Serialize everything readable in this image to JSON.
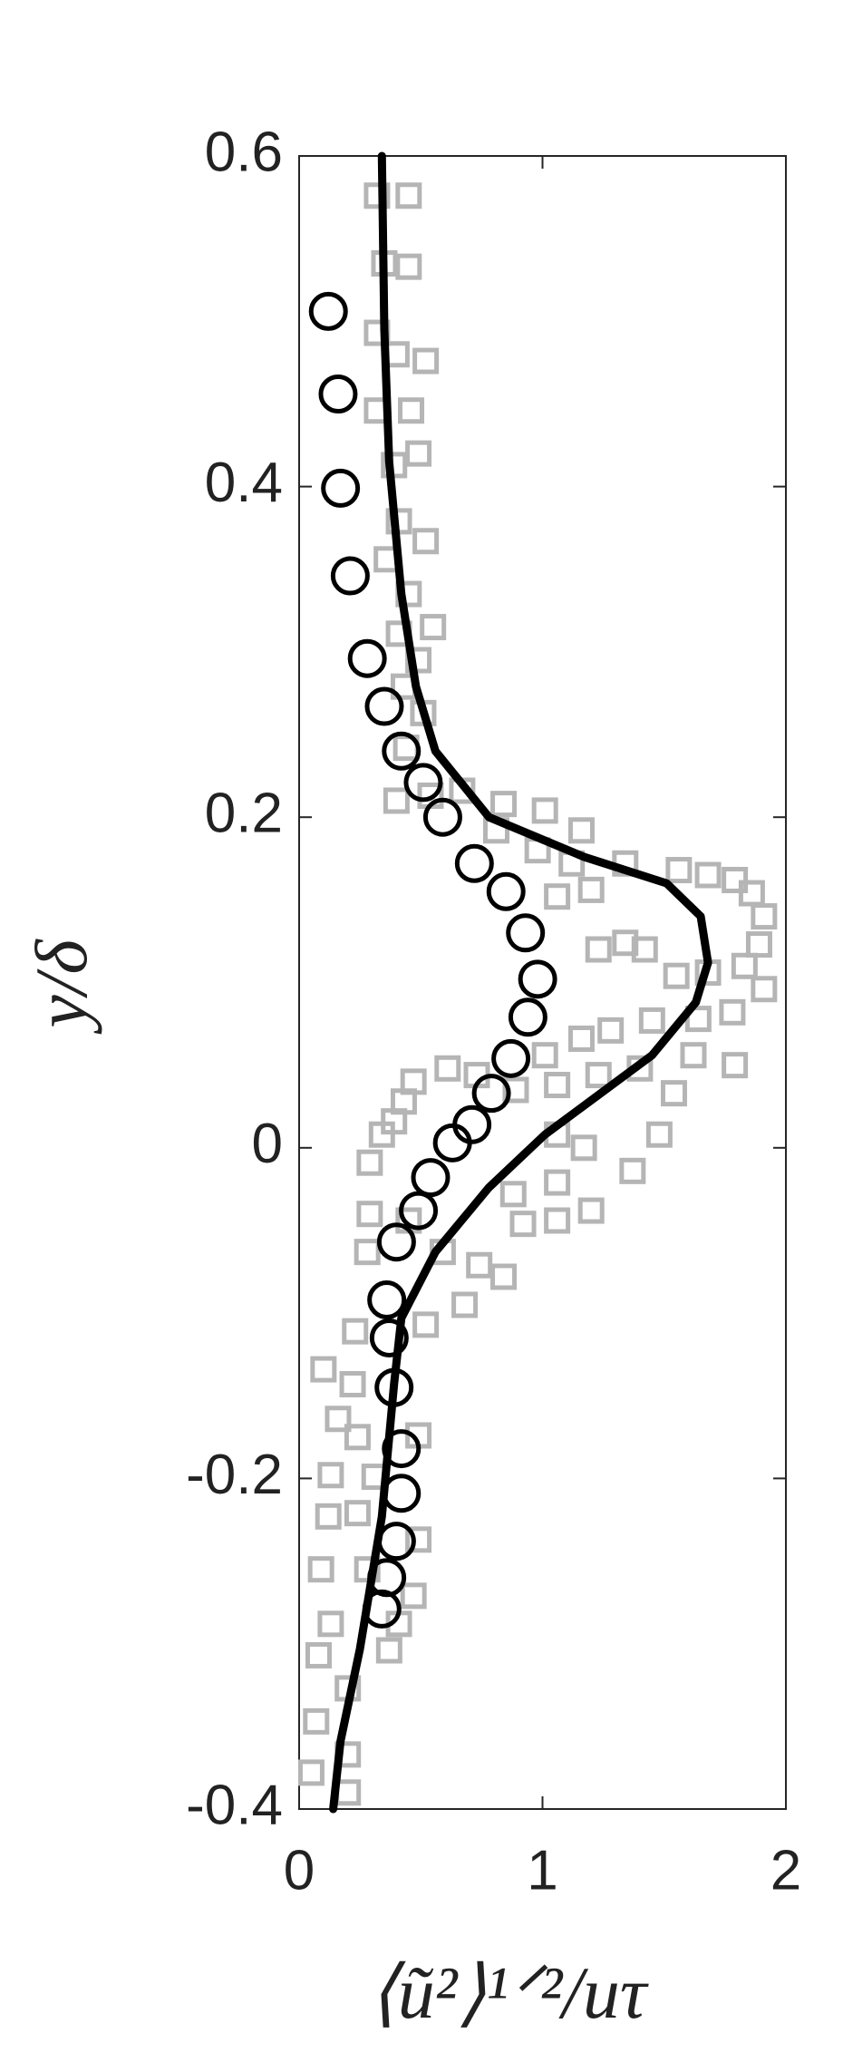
{
  "chart_data": {
    "type": "scatter",
    "x_label": "⟨ũ²⟩¹ᐟ²/uτ",
    "y_label": "y/δ",
    "xlim": [
      0,
      2
    ],
    "ylim": [
      -0.4,
      0.6
    ],
    "xticks": [
      0,
      1,
      2
    ],
    "yticks": [
      0.6,
      0.4,
      0.2,
      0,
      -0.2,
      -0.4
    ],
    "grid": false,
    "series": [
      {
        "marker": "square",
        "color": "#b5b5b5",
        "x": [
          0.32,
          0.45,
          0.35,
          0.45,
          0.32,
          0.4,
          0.52,
          0.32,
          0.46,
          0.39,
          0.49,
          0.41,
          0.52,
          0.36,
          0.45,
          0.55,
          0.41,
          0.49,
          0.43,
          0.51,
          0.44,
          0.4,
          0.54,
          0.67,
          0.84,
          1.01,
          1.16,
          0.81,
          0.98,
          1.12,
          1.34,
          1.56,
          1.68,
          1.79,
          1.86,
          1.91,
          1.89,
          1.83,
          1.68,
          1.55,
          1.34,
          1.2,
          1.06,
          1.23,
          1.42,
          1.91,
          1.78,
          1.64,
          1.45,
          1.28,
          1.16,
          1.01,
          1.79,
          1.62,
          1.4,
          1.23,
          1.06,
          1.54,
          0.89,
          0.73,
          0.61,
          0.47,
          0.43,
          0.39,
          0.34,
          0.29,
          1.48,
          1.17,
          1.06,
          1.37,
          1.2,
          1.06,
          0.92,
          0.88,
          1.06,
          0.84,
          0.74,
          0.59,
          0.45,
          0.29,
          0.28,
          0.68,
          0.52,
          0.23,
          0.1,
          0.22,
          0.16,
          0.24,
          0.49,
          0.13,
          0.31,
          0.24,
          0.12,
          0.49,
          0.09,
          0.28,
          0.47,
          0.13,
          0.41,
          0.08,
          0.37,
          0.07,
          0.2,
          0.05,
          0.2,
          0.2
        ],
        "values": [
          0.576,
          0.576,
          0.535,
          0.533,
          0.493,
          0.48,
          0.476,
          0.446,
          0.446,
          0.413,
          0.42,
          0.379,
          0.367,
          0.356,
          0.335,
          0.315,
          0.311,
          0.295,
          0.279,
          0.263,
          0.242,
          0.21,
          0.213,
          0.216,
          0.208,
          0.204,
          0.192,
          0.192,
          0.18,
          0.172,
          0.172,
          0.168,
          0.165,
          0.162,
          0.154,
          0.14,
          0.123,
          0.11,
          0.106,
          0.104,
          0.124,
          0.156,
          0.152,
          0.12,
          0.12,
          0.096,
          0.082,
          0.078,
          0.077,
          0.071,
          0.066,
          0.056,
          0.05,
          0.056,
          0.048,
          0.044,
          0.038,
          0.033,
          0.035,
          0.044,
          0.048,
          0.04,
          0.028,
          0.016,
          0.008,
          -0.009,
          0.008,
          0.0,
          0.008,
          -0.014,
          -0.038,
          -0.044,
          -0.046,
          -0.028,
          -0.021,
          -0.078,
          -0.071,
          -0.063,
          -0.044,
          -0.04,
          -0.063,
          -0.095,
          -0.107,
          -0.111,
          -0.134,
          -0.143,
          -0.164,
          -0.175,
          -0.174,
          -0.198,
          -0.199,
          -0.221,
          -0.223,
          -0.237,
          -0.255,
          -0.255,
          -0.271,
          -0.288,
          -0.288,
          -0.307,
          -0.304,
          -0.347,
          -0.327,
          -0.378,
          -0.367,
          -0.39
        ]
      },
      {
        "marker": "line",
        "color": "#000000",
        "x": [
          0.34,
          0.35,
          0.37,
          0.42,
          0.48,
          0.56,
          0.78,
          1.17,
          1.51,
          1.65,
          1.68,
          1.63,
          1.45,
          1.23,
          1.01,
          0.78,
          0.56,
          0.42,
          0.39,
          0.34,
          0.25,
          0.17,
          0.14
        ],
        "values": [
          0.6,
          0.495,
          0.415,
          0.335,
          0.279,
          0.24,
          0.2,
          0.176,
          0.16,
          0.14,
          0.112,
          0.088,
          0.056,
          0.032,
          0.008,
          -0.024,
          -0.063,
          -0.103,
          -0.143,
          -0.223,
          -0.303,
          -0.359,
          -0.4
        ]
      },
      {
        "marker": "circle",
        "color": "#000000",
        "x": [
          0.12,
          0.16,
          0.17,
          0.21,
          0.28,
          0.35,
          0.42,
          0.51,
          0.59,
          0.72,
          0.85,
          0.93,
          0.98,
          0.94,
          0.87,
          0.79,
          0.71,
          0.63,
          0.54,
          0.49,
          0.4,
          0.36,
          0.37,
          0.39,
          0.42,
          0.42,
          0.4,
          0.36,
          0.34
        ],
        "values": [
          0.506,
          0.456,
          0.399,
          0.346,
          0.296,
          0.267,
          0.24,
          0.221,
          0.2,
          0.172,
          0.155,
          0.13,
          0.102,
          0.079,
          0.054,
          0.033,
          0.014,
          0.003,
          -0.018,
          -0.038,
          -0.057,
          -0.092,
          -0.115,
          -0.145,
          -0.182,
          -0.209,
          -0.238,
          -0.26,
          -0.279
        ]
      }
    ]
  }
}
